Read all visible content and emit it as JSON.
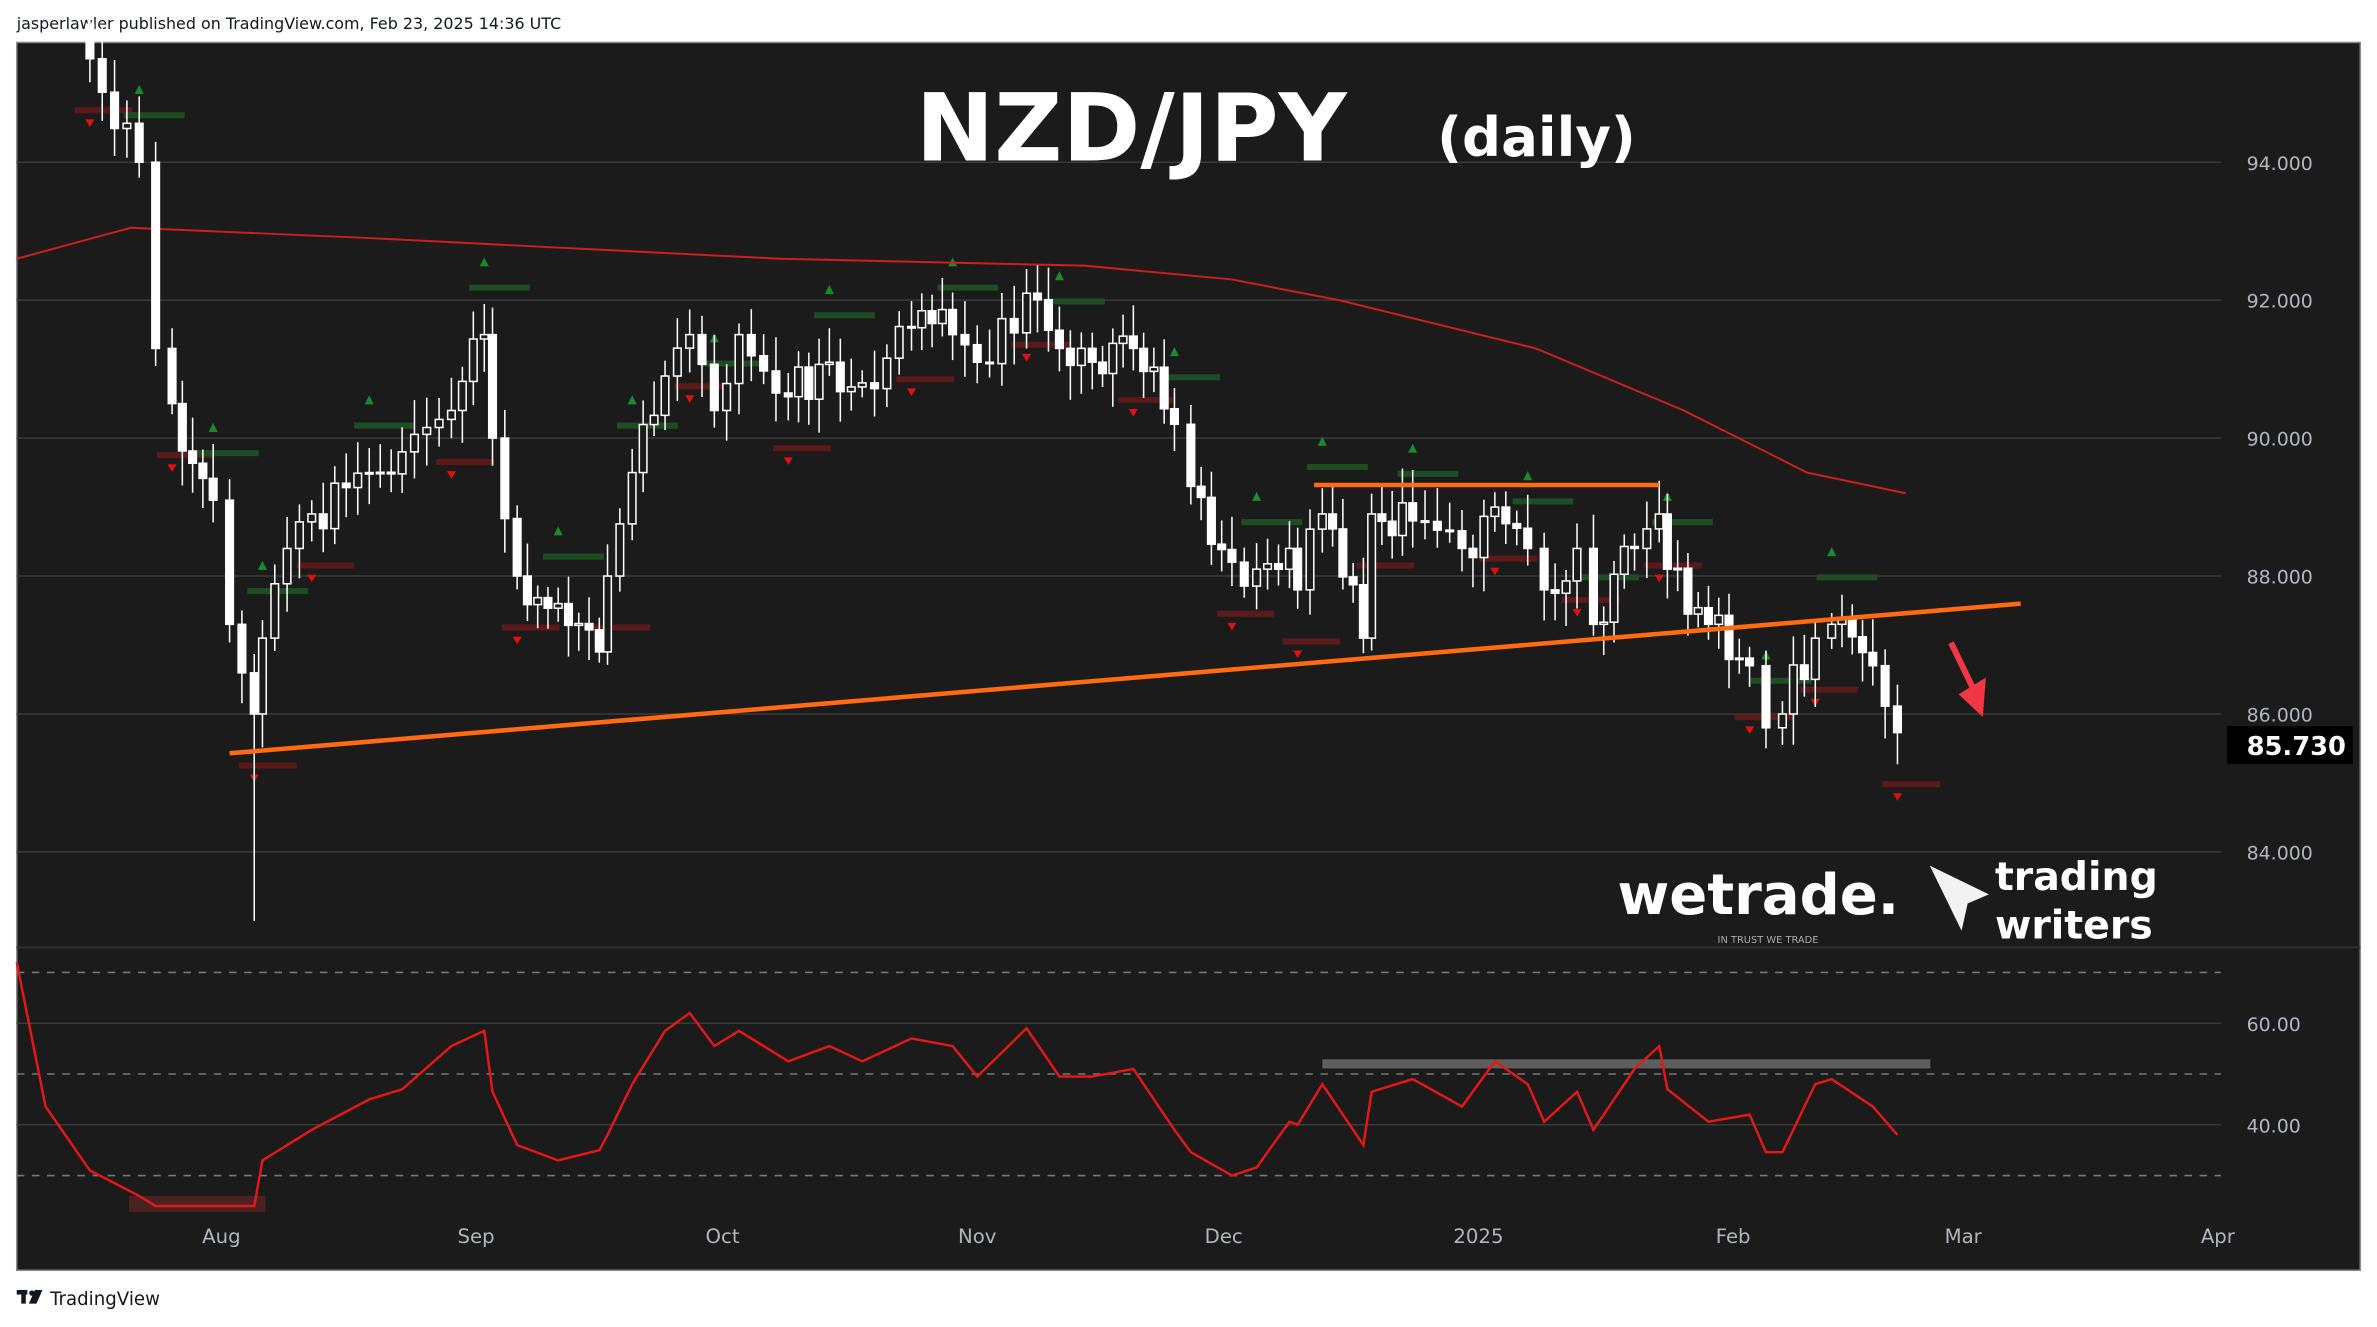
{
  "header": {
    "credit": "jasperlawler published on TradingView.com, Feb 23, 2025 14:36 UTC"
  },
  "footer": {
    "brand": "TradingView"
  },
  "logos": {
    "wetrade": "wetrade.",
    "wetrade_tagline": "IN TRUST WE TRADE",
    "tw_line1": "trading",
    "tw_line2": "writers"
  },
  "colors": {
    "background": "#1b1b1b",
    "candle": "#ffffff",
    "ma": "#cc1f1f",
    "trendline": "#ff6a13",
    "rsi": "#e81717",
    "bull_marker": "#1a8a2a",
    "bear_marker": "#e01010",
    "arrow": "#f23645"
  },
  "chart_data": {
    "type": "candlestick",
    "title": "NZD/JPY",
    "subtitle": "(daily)",
    "last_price_label": "85.730",
    "price_axis": {
      "ticks": [
        "94.000",
        "92.000",
        "90.000",
        "88.000",
        "86.000",
        "84.000"
      ],
      "tick_values": [
        94,
        92,
        90,
        88,
        86,
        84
      ],
      "ylim": [
        82.2,
        95.9
      ]
    },
    "x_axis": {
      "ticks": [
        {
          "label": "Aug",
          "date": "2024-08-01"
        },
        {
          "label": "Sep",
          "date": "2024-09-01"
        },
        {
          "label": "Oct",
          "date": "2024-10-01"
        },
        {
          "label": "Nov",
          "date": "2024-11-01"
        },
        {
          "label": "Dec",
          "date": "2024-12-01"
        },
        {
          "label": "2025",
          "date": "2025-01-01"
        },
        {
          "label": "Feb",
          "date": "2025-02-01"
        },
        {
          "label": "Mar",
          "date": "2025-03-01"
        },
        {
          "label": "Apr",
          "date": "2025-04-01"
        }
      ]
    },
    "price": [
      {
        "date": "2024-07-16",
        "close": 95.5
      },
      {
        "date": "2024-07-22",
        "close": 94.0
      },
      {
        "date": "2024-07-24",
        "close": 91.3
      },
      {
        "date": "2024-07-26",
        "close": 90.5
      },
      {
        "date": "2024-07-31",
        "close": 89.1
      },
      {
        "date": "2024-08-02",
        "close": 87.3
      },
      {
        "date": "2024-08-05",
        "close": 86.0,
        "low": 83.0
      },
      {
        "date": "2024-08-06",
        "close": 87.1
      },
      {
        "date": "2024-08-09",
        "close": 88.4
      },
      {
        "date": "2024-08-12",
        "close": 88.9
      },
      {
        "date": "2024-08-19",
        "close": 89.5
      },
      {
        "date": "2024-08-23",
        "close": 89.8
      },
      {
        "date": "2024-08-29",
        "close": 90.4
      },
      {
        "date": "2024-09-02",
        "close": 91.5
      },
      {
        "date": "2024-09-03",
        "close": 90.0
      },
      {
        "date": "2024-09-06",
        "close": 88.0
      },
      {
        "date": "2024-09-11",
        "close": 87.6
      },
      {
        "date": "2024-09-16",
        "close": 86.9
      },
      {
        "date": "2024-09-17",
        "close": 88.0
      },
      {
        "date": "2024-09-20",
        "close": 89.5
      },
      {
        "date": "2024-09-24",
        "close": 90.9
      },
      {
        "date": "2024-09-27",
        "close": 91.5
      },
      {
        "date": "2024-09-30",
        "close": 90.4
      },
      {
        "date": "2024-10-03",
        "close": 91.5
      },
      {
        "date": "2024-10-09",
        "close": 90.6
      },
      {
        "date": "2024-10-14",
        "close": 91.1
      },
      {
        "date": "2024-10-18",
        "close": 90.8
      },
      {
        "date": "2024-10-24",
        "close": 91.6
      },
      {
        "date": "2024-10-29",
        "close": 91.5
      },
      {
        "date": "2024-11-01",
        "close": 91.1
      },
      {
        "date": "2024-11-07",
        "close": 92.1
      },
      {
        "date": "2024-11-11",
        "close": 91.3
      },
      {
        "date": "2024-11-15",
        "close": 91.1
      },
      {
        "date": "2024-11-20",
        "close": 91.3
      },
      {
        "date": "2024-11-25",
        "close": 90.2
      },
      {
        "date": "2024-11-27",
        "close": 89.3
      },
      {
        "date": "2024-12-02",
        "close": 88.2
      },
      {
        "date": "2024-12-05",
        "close": 88.1
      },
      {
        "date": "2024-12-09",
        "close": 88.4
      },
      {
        "date": "2024-12-10",
        "close": 87.8
      },
      {
        "date": "2024-12-13",
        "close": 88.9
      },
      {
        "date": "2024-12-18",
        "close": 87.1
      },
      {
        "date": "2024-12-19",
        "close": 88.9
      },
      {
        "date": "2024-12-24",
        "close": 88.8
      },
      {
        "date": "2024-12-30",
        "close": 88.4
      },
      {
        "date": "2025-01-03",
        "close": 89.0
      },
      {
        "date": "2025-01-07",
        "close": 88.4
      },
      {
        "date": "2025-01-09",
        "close": 87.8
      },
      {
        "date": "2025-01-13",
        "close": 88.4
      },
      {
        "date": "2025-01-15",
        "close": 87.3
      },
      {
        "date": "2025-01-20",
        "close": 88.4
      },
      {
        "date": "2025-01-23",
        "close": 88.9
      },
      {
        "date": "2025-01-24",
        "close": 88.1
      },
      {
        "date": "2025-01-29",
        "close": 87.3
      },
      {
        "date": "2025-02-03",
        "close": 86.7
      },
      {
        "date": "2025-02-05",
        "close": 85.8
      },
      {
        "date": "2025-02-07",
        "close": 86.0
      },
      {
        "date": "2025-02-11",
        "close": 87.1
      },
      {
        "date": "2025-02-13",
        "close": 87.3
      },
      {
        "date": "2025-02-18",
        "close": 86.7
      },
      {
        "date": "2025-02-21",
        "close": 85.73
      }
    ],
    "moving_average": [
      {
        "date": "2024-07-02",
        "value": 92.6
      },
      {
        "date": "2024-07-21",
        "value": 93.05
      },
      {
        "date": "2024-08-19",
        "value": 92.9
      },
      {
        "date": "2024-10-08",
        "value": 92.6
      },
      {
        "date": "2024-11-14",
        "value": 92.5
      },
      {
        "date": "2024-12-02",
        "value": 92.3
      },
      {
        "date": "2024-12-15",
        "value": 92.0
      },
      {
        "date": "2025-01-08",
        "value": 91.3
      },
      {
        "date": "2025-01-26",
        "value": 90.4
      },
      {
        "date": "2025-02-10",
        "value": 89.5
      },
      {
        "date": "2025-02-22",
        "value": 89.2
      }
    ],
    "trendlines": [
      {
        "name": "support",
        "from": {
          "date": "2024-08-02",
          "value": 85.43
        },
        "to": {
          "date": "2025-03-08",
          "value": 87.6
        }
      },
      {
        "name": "resistance",
        "from": {
          "date": "2024-12-12",
          "value": 89.32
        },
        "to": {
          "date": "2025-01-23",
          "value": 89.32
        }
      }
    ],
    "rsi": {
      "ticks": [
        "60.00",
        "40.00"
      ],
      "tick_values": [
        60,
        40
      ],
      "bands": [
        70,
        50,
        30
      ],
      "ylim": [
        24,
        73
      ],
      "highlight_level": {
        "value": 52,
        "from": "2024-12-13",
        "to": "2025-02-25"
      },
      "values": [
        31,
        26,
        24,
        24,
        24,
        24,
        24,
        33,
        36,
        39,
        45,
        47,
        55.5,
        58.5,
        46.5,
        36,
        33,
        35,
        38,
        48,
        58.5,
        62,
        55.5,
        58.5,
        52.5,
        55.5,
        52.5,
        57,
        55.5,
        49.5,
        59,
        49.5,
        49.5,
        51,
        39,
        34.6,
        30,
        31.6,
        40.6,
        40,
        48,
        36,
        46.5,
        49,
        43.6,
        52.5,
        48,
        40.6,
        46.5,
        39,
        51,
        55.5,
        47,
        40.6,
        42,
        34.6,
        34.6,
        48,
        49,
        43.6,
        38
      ]
    },
    "grid": true
  }
}
